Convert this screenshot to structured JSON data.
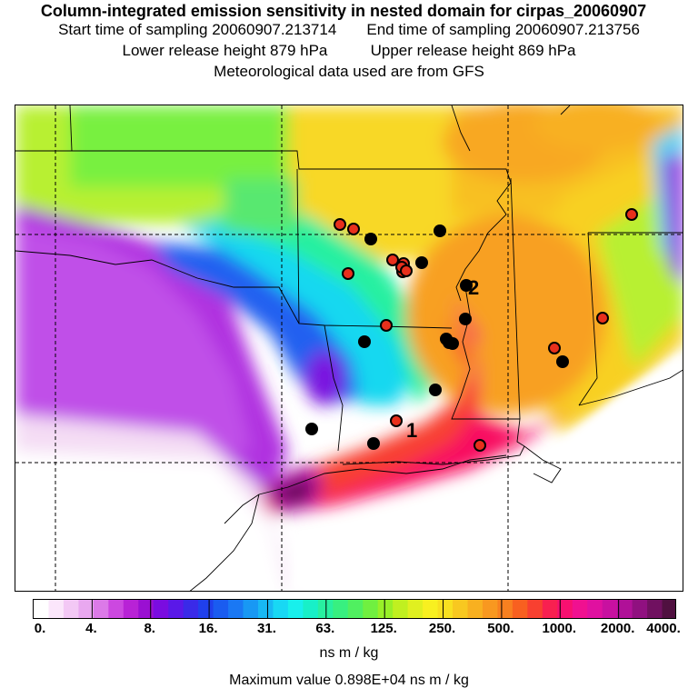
{
  "titles": {
    "line1": "Column-integrated emission sensitivity in nested domain for cirpas_20060907",
    "start": "Start time of sampling 20060907.213714",
    "end": "End time of sampling 20060907.213756",
    "lower": "Lower release height  879 hPa",
    "upper": "Upper release height  869 hPa",
    "met": "Meteorological data used are from GFS"
  },
  "map": {
    "labels": [
      {
        "text": "1",
        "name": "label-point-1"
      },
      {
        "text": "2",
        "name": "label-point-2"
      }
    ],
    "red_points": 14,
    "black_points": 13
  },
  "legend": {
    "ticks": [
      "0.",
      "4.",
      "8.",
      "16.",
      "31.",
      "63.",
      "125.",
      "250.",
      "500.",
      "1000.",
      "2000.",
      "4000."
    ],
    "unit": "ns m / kg",
    "colors": [
      "#ffffff",
      "#fbe6fb",
      "#f3c8f5",
      "#e9a8f0",
      "#dc7ae8",
      "#cc48e0",
      "#b822d6",
      "#9a10d2",
      "#7a0ce0",
      "#5a18e8",
      "#3a2ae8",
      "#2040ec",
      "#1a5cf0",
      "#1a78f4",
      "#1898f4",
      "#18b8f4",
      "#18d8f4",
      "#18f0ec",
      "#18f0c8",
      "#28f0a0",
      "#38f080",
      "#50f060",
      "#70f040",
      "#98f028",
      "#c0f020",
      "#e0f020",
      "#f8f020",
      "#f8e020",
      "#f8c820",
      "#f8b020",
      "#f89820",
      "#f88020",
      "#f86020",
      "#f84030",
      "#f82050",
      "#f81070",
      "#f01090",
      "#e010a0",
      "#c810a0",
      "#b01098",
      "#901080",
      "#701060",
      "#501040"
    ]
  },
  "footer": {
    "unit_label": "ns m / kg",
    "max_value": "Maximum value  0.898E+04 ns m / kg"
  }
}
